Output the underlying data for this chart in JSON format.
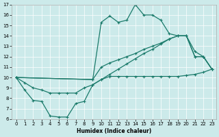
{
  "xlabel": "Humidex (Indice chaleur)",
  "bg_color": "#cceaea",
  "line_color": "#1a7a6a",
  "xlim": [
    -0.5,
    23.5
  ],
  "ylim": [
    6,
    17
  ],
  "xticks": [
    0,
    1,
    2,
    3,
    4,
    5,
    6,
    7,
    8,
    9,
    10,
    11,
    12,
    13,
    14,
    15,
    16,
    17,
    18,
    19,
    20,
    21,
    22,
    23
  ],
  "yticks": [
    6,
    7,
    8,
    9,
    10,
    11,
    12,
    13,
    14,
    15,
    16,
    17
  ],
  "series1_x": [
    0,
    1,
    2,
    3,
    4,
    5,
    6,
    7,
    8,
    9,
    10,
    11,
    12,
    13,
    14,
    15,
    16,
    17,
    18,
    19,
    20,
    21,
    22,
    23
  ],
  "series1_y": [
    10,
    8.8,
    7.8,
    7.7,
    6.3,
    6.2,
    6.2,
    7.5,
    7.7,
    9.3,
    9.8,
    10.1,
    10.1,
    10.1,
    10.1,
    10.1,
    10.1,
    10.1,
    10.1,
    10.1,
    10.2,
    10.3,
    10.5,
    10.8
  ],
  "series2_x": [
    0,
    1,
    2,
    3,
    4,
    5,
    6,
    7,
    8,
    9,
    10,
    11,
    12,
    13,
    14,
    15,
    16,
    17,
    18,
    19,
    20,
    21,
    22,
    23
  ],
  "series2_y": [
    10,
    9.5,
    9.0,
    8.8,
    8.5,
    8.5,
    8.5,
    8.5,
    9.0,
    9.3,
    9.8,
    10.3,
    10.8,
    11.3,
    11.8,
    12.3,
    12.7,
    13.2,
    13.7,
    14.0,
    14.0,
    12.5,
    12.0,
    10.8
  ],
  "series3_x": [
    0,
    9,
    10,
    11,
    12,
    13,
    14,
    15,
    16,
    17,
    18,
    19,
    20,
    21,
    22,
    23
  ],
  "series3_y": [
    10,
    9.8,
    15.3,
    15.9,
    15.3,
    15.5,
    17.0,
    16.0,
    16.0,
    15.5,
    14.2,
    14.0,
    14.0,
    12.0,
    12.0,
    10.8
  ],
  "series4_x": [
    0,
    9,
    10,
    11,
    12,
    13,
    14,
    15,
    16,
    17,
    18,
    19,
    20,
    21,
    22,
    23
  ],
  "series4_y": [
    10,
    9.8,
    11.0,
    11.4,
    11.7,
    12.0,
    12.3,
    12.7,
    13.0,
    13.3,
    13.7,
    14.0,
    14.0,
    12.0,
    12.0,
    10.8
  ]
}
